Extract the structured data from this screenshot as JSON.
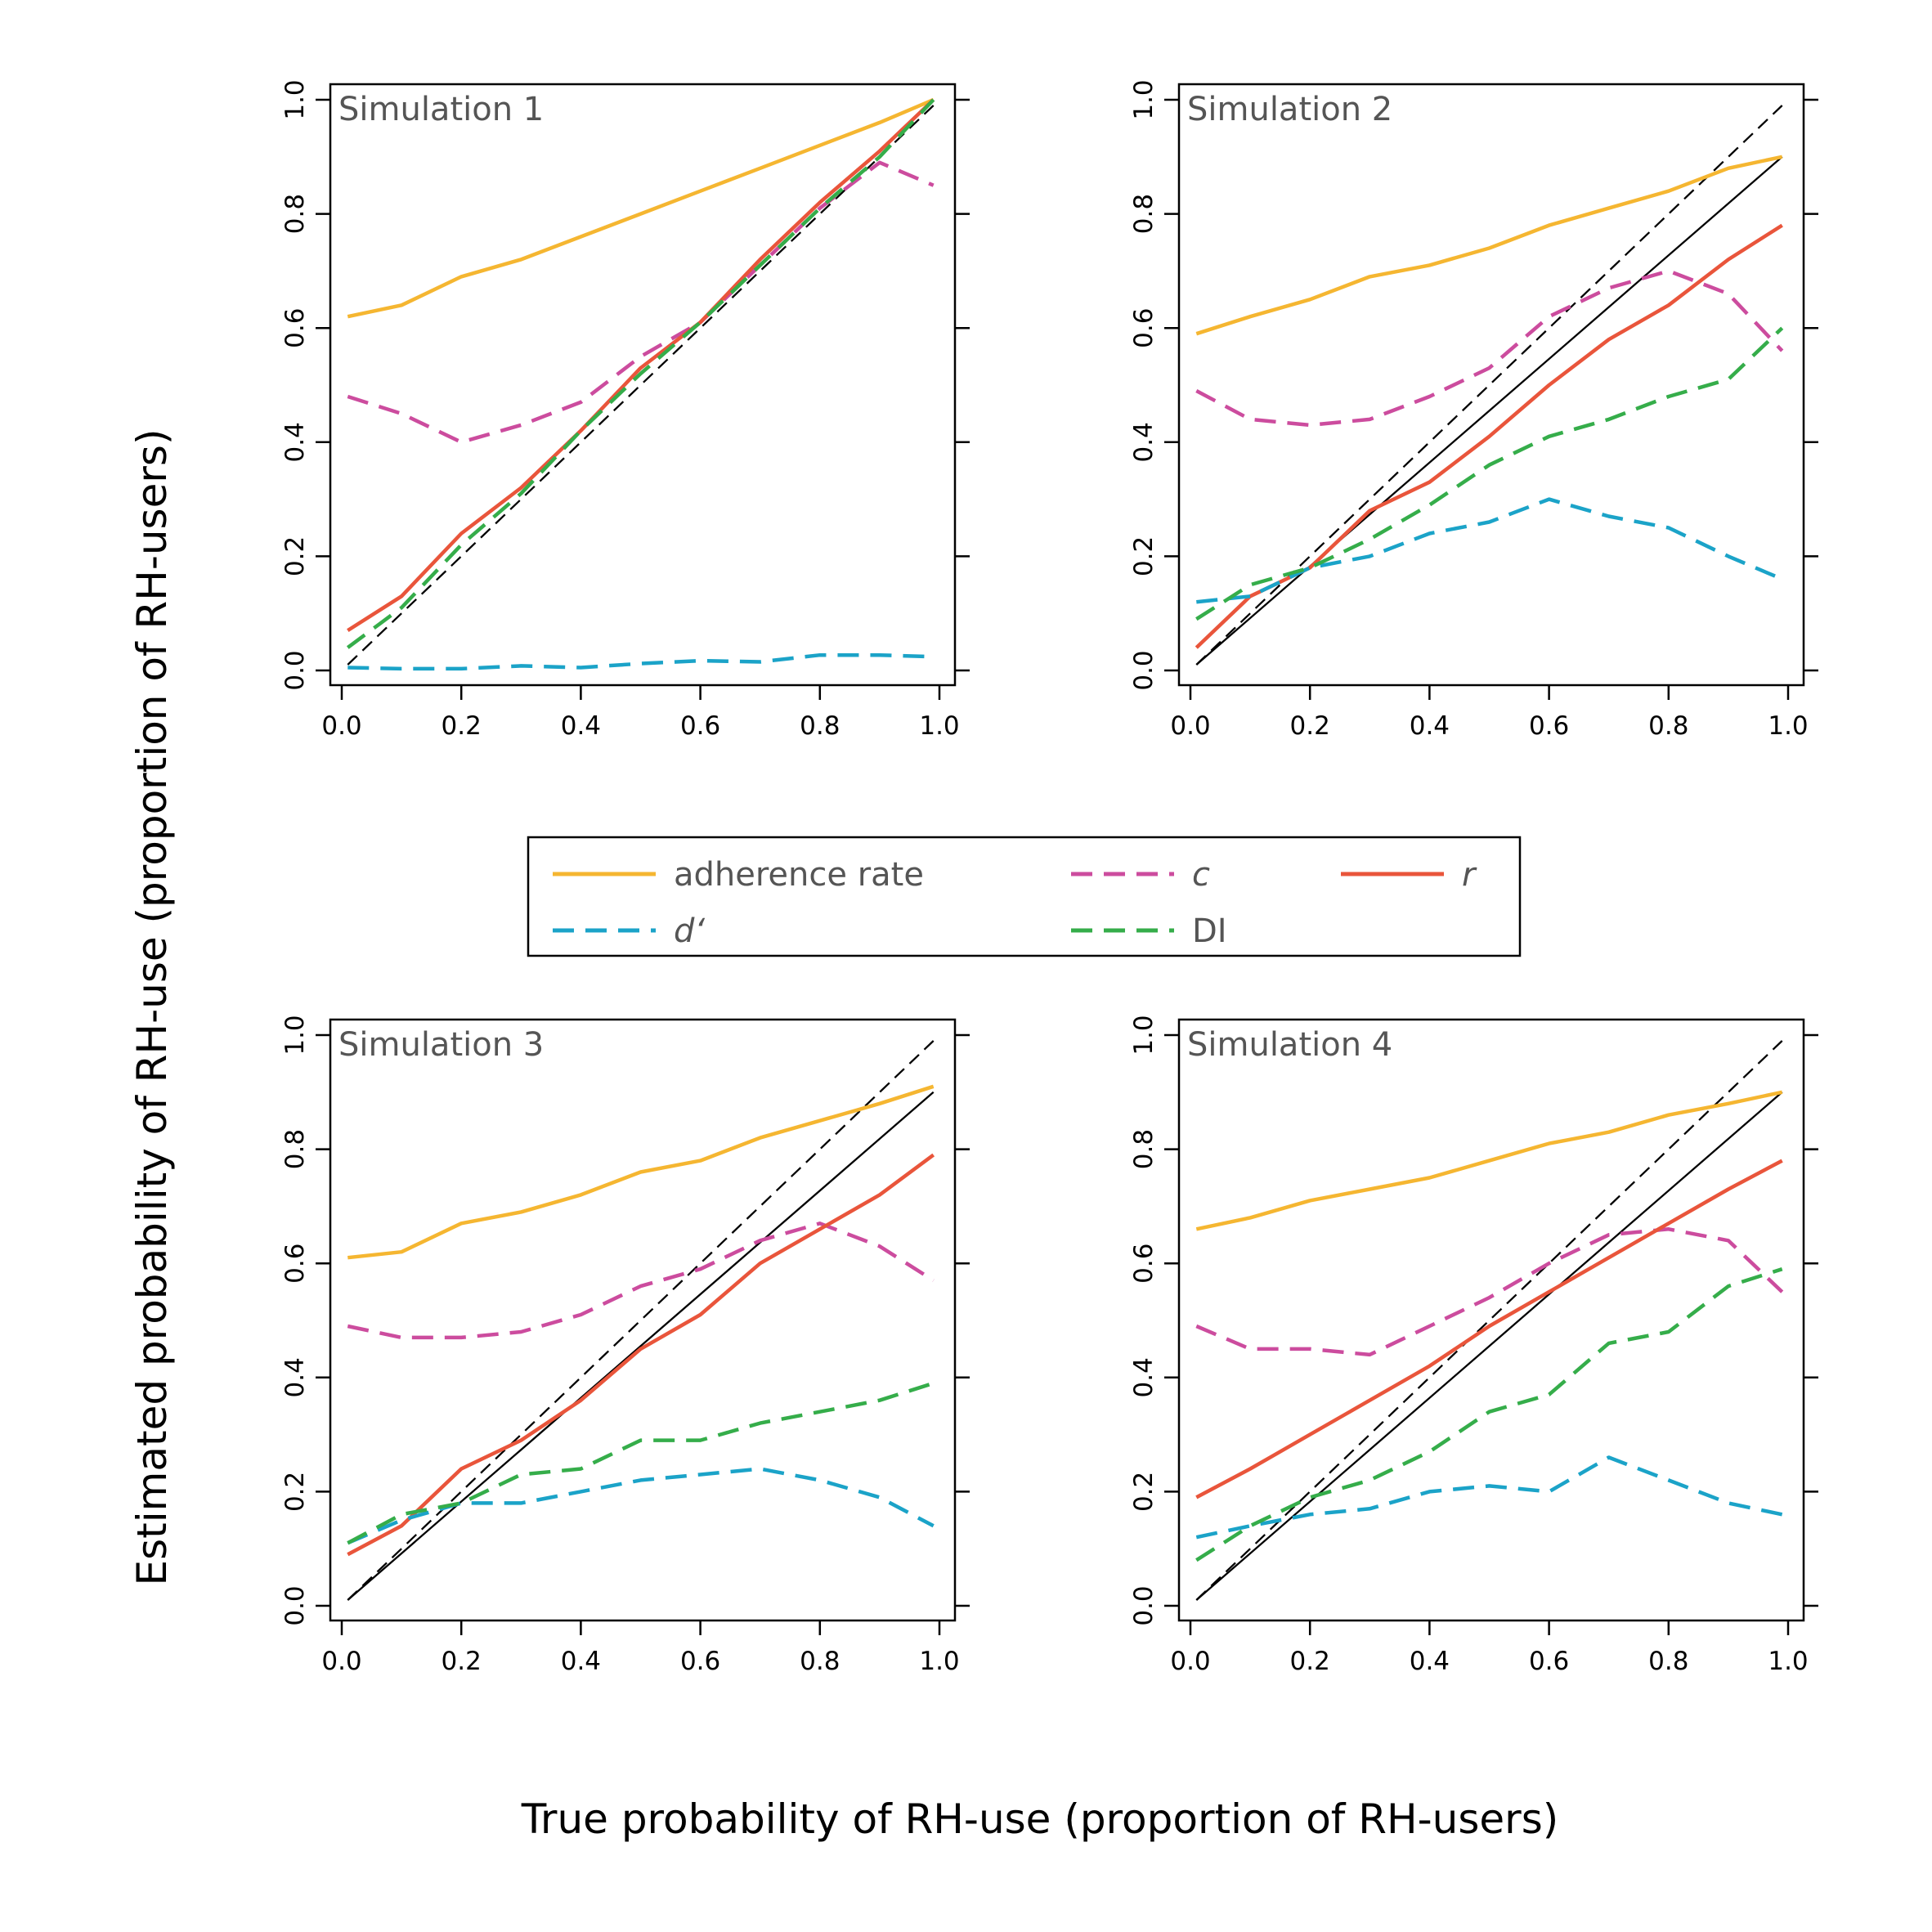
{
  "figure": {
    "ylabel": "Estimated probability of RH-use (proportion of RH-users)",
    "xlabel": "True probability of RH-use (proportion of RH-users)"
  },
  "legend": {
    "placement": "center, between the two rows of panels",
    "entries": [
      {
        "key": "adherence",
        "label": "adherence rate",
        "italic": false,
        "color": "#F5B631",
        "dash": "solid"
      },
      {
        "key": "c",
        "label": "c",
        "italic": true,
        "color": "#CC4C9E",
        "dash": "dashed"
      },
      {
        "key": "r",
        "label": "r",
        "italic": true,
        "color": "#E9553B",
        "dash": "solid"
      },
      {
        "key": "dprime",
        "label": "d‘",
        "italic": true,
        "color": "#1BA3C8",
        "dash": "dashed"
      },
      {
        "key": "DI",
        "label": "DI",
        "italic": false,
        "color": "#35AD4A",
        "dash": "dashed"
      }
    ]
  },
  "chart_data": [
    {
      "type": "line",
      "title": "Simulation 1",
      "xlim": [
        0,
        1
      ],
      "ylim": [
        0,
        1
      ],
      "xticks": [
        "0.0",
        "0.2",
        "0.4",
        "0.6",
        "0.8",
        "1.0"
      ],
      "yticks": [
        "0.0",
        "0.2",
        "0.4",
        "0.6",
        "0.8",
        "1.0"
      ],
      "grid": false,
      "reference_lines": [
        {
          "style": "dashed",
          "color": "#000000",
          "points": [
            [
              0.01,
              0.01
            ],
            [
              0.99,
              0.99
            ]
          ]
        }
      ],
      "series": [
        {
          "name": "adherence rate",
          "key": "adherence",
          "x": [
            0.01,
            0.1,
            0.2,
            0.3,
            0.4,
            0.5,
            0.6,
            0.7,
            0.8,
            0.9,
            0.99
          ],
          "y": [
            0.62,
            0.64,
            0.69,
            0.72,
            0.76,
            0.8,
            0.84,
            0.88,
            0.92,
            0.96,
            1.0
          ]
        },
        {
          "name": "c",
          "key": "c",
          "x": [
            0.01,
            0.1,
            0.2,
            0.3,
            0.4,
            0.5,
            0.6,
            0.7,
            0.8,
            0.9,
            0.99
          ],
          "y": [
            0.48,
            0.45,
            0.4,
            0.43,
            0.47,
            0.55,
            0.61,
            0.71,
            0.81,
            0.89,
            0.85
          ]
        },
        {
          "name": "r",
          "key": "r",
          "x": [
            0.01,
            0.1,
            0.2,
            0.3,
            0.4,
            0.5,
            0.6,
            0.7,
            0.8,
            0.9,
            0.99
          ],
          "y": [
            0.07,
            0.13,
            0.24,
            0.32,
            0.42,
            0.53,
            0.61,
            0.72,
            0.82,
            0.91,
            1.0
          ]
        },
        {
          "name": "d‘",
          "key": "dprime",
          "x": [
            0.01,
            0.1,
            0.2,
            0.3,
            0.4,
            0.5,
            0.6,
            0.7,
            0.8,
            0.9,
            0.99
          ],
          "y": [
            0.005,
            0.003,
            0.003,
            0.008,
            0.005,
            0.012,
            0.017,
            0.015,
            0.027,
            0.027,
            0.024
          ]
        },
        {
          "name": "DI",
          "key": "DI",
          "x": [
            0.01,
            0.1,
            0.2,
            0.3,
            0.4,
            0.5,
            0.6,
            0.7,
            0.8,
            0.9,
            0.99
          ],
          "y": [
            0.04,
            0.11,
            0.22,
            0.31,
            0.42,
            0.52,
            0.61,
            0.71,
            0.81,
            0.9,
            1.0
          ]
        }
      ]
    },
    {
      "type": "line",
      "title": "Simulation 2",
      "xlim": [
        0,
        1
      ],
      "ylim": [
        0,
        1
      ],
      "xticks": [
        "0.0",
        "0.2",
        "0.4",
        "0.6",
        "0.8",
        "1.0"
      ],
      "yticks": [
        "0.0",
        "0.2",
        "0.4",
        "0.6",
        "0.8",
        "1.0"
      ],
      "grid": false,
      "reference_lines": [
        {
          "style": "dashed",
          "color": "#000000",
          "points": [
            [
              0.01,
              0.01
            ],
            [
              0.99,
              0.99
            ]
          ]
        },
        {
          "style": "solid",
          "color": "#000000",
          "points": [
            [
              0.01,
              0.01
            ],
            [
              0.99,
              0.9
            ]
          ]
        }
      ],
      "series": [
        {
          "name": "adherence rate",
          "key": "adherence",
          "x": [
            0.01,
            0.1,
            0.2,
            0.3,
            0.4,
            0.5,
            0.6,
            0.7,
            0.8,
            0.9,
            0.99
          ],
          "y": [
            0.59,
            0.62,
            0.65,
            0.69,
            0.71,
            0.74,
            0.78,
            0.81,
            0.84,
            0.88,
            0.9
          ]
        },
        {
          "name": "c",
          "key": "c",
          "x": [
            0.01,
            0.1,
            0.2,
            0.3,
            0.4,
            0.5,
            0.6,
            0.7,
            0.8,
            0.9,
            0.99
          ],
          "y": [
            0.49,
            0.44,
            0.43,
            0.44,
            0.48,
            0.53,
            0.62,
            0.67,
            0.7,
            0.66,
            0.56
          ]
        },
        {
          "name": "r",
          "key": "r",
          "x": [
            0.01,
            0.1,
            0.2,
            0.3,
            0.4,
            0.5,
            0.6,
            0.7,
            0.8,
            0.9,
            0.99
          ],
          "y": [
            0.04,
            0.13,
            0.18,
            0.28,
            0.33,
            0.41,
            0.5,
            0.58,
            0.64,
            0.72,
            0.78
          ]
        },
        {
          "name": "d‘",
          "key": "dprime",
          "x": [
            0.01,
            0.1,
            0.2,
            0.3,
            0.4,
            0.5,
            0.6,
            0.7,
            0.8,
            0.9,
            0.99
          ],
          "y": [
            0.12,
            0.13,
            0.18,
            0.2,
            0.24,
            0.26,
            0.3,
            0.27,
            0.25,
            0.2,
            0.16
          ]
        },
        {
          "name": "DI",
          "key": "DI",
          "x": [
            0.01,
            0.1,
            0.2,
            0.3,
            0.4,
            0.5,
            0.6,
            0.7,
            0.8,
            0.9,
            0.99
          ],
          "y": [
            0.09,
            0.15,
            0.18,
            0.23,
            0.29,
            0.36,
            0.41,
            0.44,
            0.48,
            0.51,
            0.6
          ]
        }
      ]
    },
    {
      "type": "line",
      "title": "Simulation 3",
      "xlim": [
        0,
        1
      ],
      "ylim": [
        0,
        1
      ],
      "xticks": [
        "0.0",
        "0.2",
        "0.4",
        "0.6",
        "0.8",
        "1.0"
      ],
      "yticks": [
        "0.0",
        "0.2",
        "0.4",
        "0.6",
        "0.8",
        "1.0"
      ],
      "grid": false,
      "reference_lines": [
        {
          "style": "dashed",
          "color": "#000000",
          "points": [
            [
              0.01,
              0.01
            ],
            [
              0.99,
              0.99
            ]
          ]
        },
        {
          "style": "solid",
          "color": "#000000",
          "points": [
            [
              0.01,
              0.01
            ],
            [
              0.99,
              0.9
            ]
          ]
        }
      ],
      "series": [
        {
          "name": "adherence rate",
          "key": "adherence",
          "x": [
            0.01,
            0.1,
            0.2,
            0.3,
            0.4,
            0.5,
            0.6,
            0.7,
            0.8,
            0.9,
            0.99
          ],
          "y": [
            0.61,
            0.62,
            0.67,
            0.69,
            0.72,
            0.76,
            0.78,
            0.82,
            0.85,
            0.88,
            0.91
          ]
        },
        {
          "name": "c",
          "key": "c",
          "x": [
            0.01,
            0.1,
            0.2,
            0.3,
            0.4,
            0.5,
            0.6,
            0.7,
            0.8,
            0.9,
            0.99
          ],
          "y": [
            0.49,
            0.47,
            0.47,
            0.48,
            0.51,
            0.56,
            0.59,
            0.64,
            0.67,
            0.63,
            0.57
          ]
        },
        {
          "name": "r",
          "key": "r",
          "x": [
            0.01,
            0.1,
            0.2,
            0.3,
            0.4,
            0.5,
            0.6,
            0.7,
            0.8,
            0.9,
            0.99
          ],
          "y": [
            0.09,
            0.14,
            0.24,
            0.29,
            0.36,
            0.45,
            0.51,
            0.6,
            0.66,
            0.72,
            0.79
          ]
        },
        {
          "name": "d‘",
          "key": "dprime",
          "x": [
            0.01,
            0.1,
            0.2,
            0.3,
            0.4,
            0.5,
            0.6,
            0.7,
            0.8,
            0.9,
            0.99
          ],
          "y": [
            0.11,
            0.15,
            0.18,
            0.18,
            0.2,
            0.22,
            0.23,
            0.24,
            0.22,
            0.19,
            0.14
          ]
        },
        {
          "name": "DI",
          "key": "DI",
          "x": [
            0.01,
            0.1,
            0.2,
            0.3,
            0.4,
            0.5,
            0.6,
            0.7,
            0.8,
            0.9,
            0.99
          ],
          "y": [
            0.11,
            0.16,
            0.18,
            0.23,
            0.24,
            0.29,
            0.29,
            0.32,
            0.34,
            0.36,
            0.39
          ]
        }
      ]
    },
    {
      "type": "line",
      "title": "Simulation 4",
      "xlim": [
        0,
        1
      ],
      "ylim": [
        0,
        1
      ],
      "xticks": [
        "0.0",
        "0.2",
        "0.4",
        "0.6",
        "0.8",
        "1.0"
      ],
      "yticks": [
        "0.0",
        "0.2",
        "0.4",
        "0.6",
        "0.8",
        "1.0"
      ],
      "grid": false,
      "reference_lines": [
        {
          "style": "dashed",
          "color": "#000000",
          "points": [
            [
              0.01,
              0.01
            ],
            [
              0.99,
              0.99
            ]
          ]
        },
        {
          "style": "solid",
          "color": "#000000",
          "points": [
            [
              0.01,
              0.01
            ],
            [
              0.99,
              0.9
            ]
          ]
        }
      ],
      "series": [
        {
          "name": "adherence rate",
          "key": "adherence",
          "x": [
            0.01,
            0.1,
            0.2,
            0.3,
            0.4,
            0.5,
            0.6,
            0.7,
            0.8,
            0.9,
            0.99
          ],
          "y": [
            0.66,
            0.68,
            0.71,
            0.73,
            0.75,
            0.78,
            0.81,
            0.83,
            0.86,
            0.88,
            0.9
          ]
        },
        {
          "name": "c",
          "key": "c",
          "x": [
            0.01,
            0.1,
            0.2,
            0.3,
            0.4,
            0.5,
            0.6,
            0.7,
            0.8,
            0.9,
            0.99
          ],
          "y": [
            0.49,
            0.45,
            0.45,
            0.44,
            0.49,
            0.54,
            0.6,
            0.65,
            0.66,
            0.64,
            0.55
          ]
        },
        {
          "name": "r",
          "key": "r",
          "x": [
            0.01,
            0.1,
            0.2,
            0.3,
            0.4,
            0.5,
            0.6,
            0.7,
            0.8,
            0.9,
            0.99
          ],
          "y": [
            0.19,
            0.24,
            0.3,
            0.36,
            0.42,
            0.49,
            0.55,
            0.61,
            0.67,
            0.73,
            0.78
          ]
        },
        {
          "name": "d‘",
          "key": "dprime",
          "x": [
            0.01,
            0.1,
            0.2,
            0.3,
            0.4,
            0.5,
            0.6,
            0.7,
            0.8,
            0.9,
            0.99
          ],
          "y": [
            0.12,
            0.14,
            0.16,
            0.17,
            0.2,
            0.21,
            0.2,
            0.26,
            0.22,
            0.18,
            0.16
          ]
        },
        {
          "name": "DI",
          "key": "DI",
          "x": [
            0.01,
            0.1,
            0.2,
            0.3,
            0.4,
            0.5,
            0.6,
            0.7,
            0.8,
            0.9,
            0.99
          ],
          "y": [
            0.08,
            0.14,
            0.19,
            0.22,
            0.27,
            0.34,
            0.37,
            0.46,
            0.48,
            0.56,
            0.59
          ]
        }
      ]
    }
  ]
}
